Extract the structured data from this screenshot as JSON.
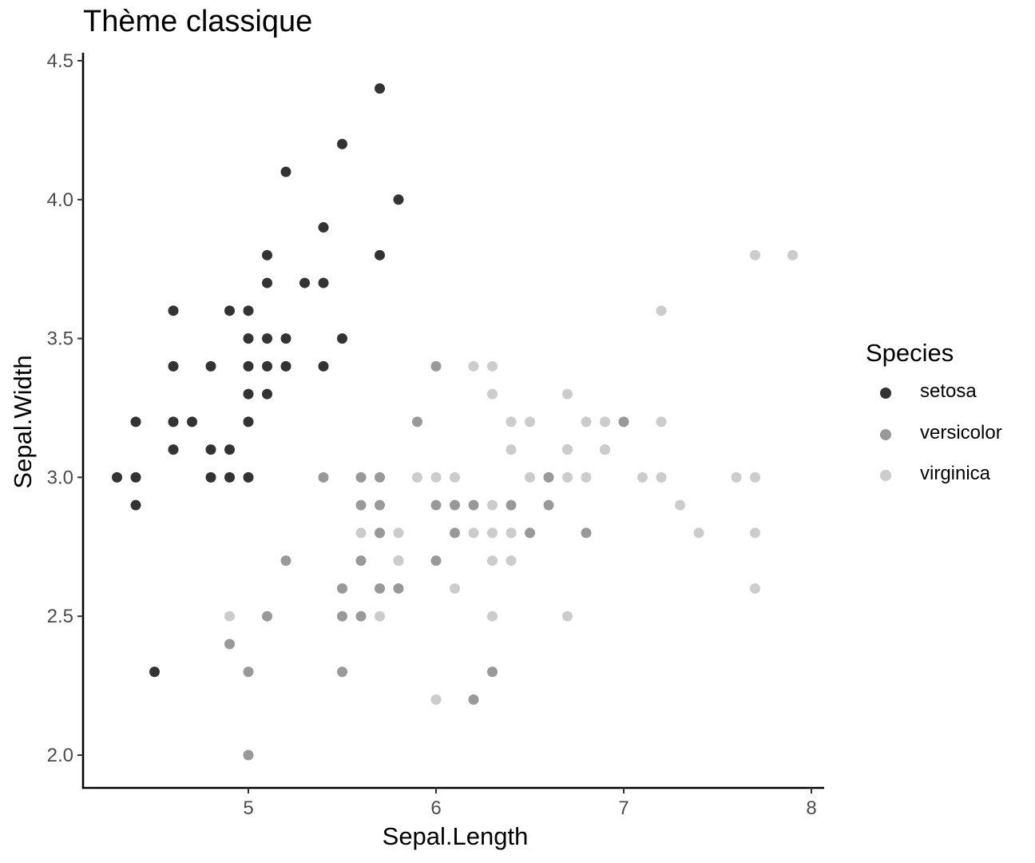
{
  "chart_data": {
    "type": "scatter",
    "title": "Thème classique",
    "xlabel": "Sepal.Length",
    "ylabel": "Sepal.Width",
    "xlim": [
      4.2,
      8.1
    ],
    "ylim": [
      1.88,
      4.52
    ],
    "xticks": [
      5,
      6,
      7,
      8
    ],
    "yticks": [
      2.0,
      2.5,
      3.0,
      3.5,
      4.0,
      4.5
    ],
    "ytick_labels": [
      "2.0",
      "2.5",
      "3.0",
      "3.5",
      "4.0",
      "4.5"
    ],
    "xtick_labels": [
      "5",
      "6",
      "7",
      "8"
    ],
    "grid": false,
    "legend": {
      "title": "Species",
      "placement": "right"
    },
    "series": [
      {
        "name": "setosa",
        "color": "#333333",
        "x": [
          5.7,
          5.5,
          5.2,
          5.8,
          5.4,
          5.7,
          5.1,
          5.1,
          5.3,
          5.4,
          4.6,
          4.9,
          5.0,
          5.0,
          5.1,
          5.2,
          5.5,
          4.6,
          4.8,
          5.0,
          5.1,
          5.2,
          5.4,
          5.0,
          5.1,
          4.4,
          4.6,
          4.7,
          5.0,
          4.6,
          4.8,
          4.9,
          4.3,
          4.4,
          4.8,
          4.9,
          5.0,
          4.4,
          4.5
        ],
        "y": [
          4.4,
          4.2,
          4.1,
          4.0,
          3.9,
          3.8,
          3.8,
          3.7,
          3.7,
          3.7,
          3.6,
          3.6,
          3.6,
          3.5,
          3.5,
          3.5,
          3.5,
          3.4,
          3.4,
          3.4,
          3.4,
          3.4,
          3.4,
          3.3,
          3.3,
          3.2,
          3.2,
          3.2,
          3.2,
          3.1,
          3.1,
          3.1,
          3.0,
          3.0,
          3.0,
          3.0,
          3.0,
          2.9,
          2.3
        ]
      },
      {
        "name": "versicolor",
        "color": "#999999",
        "x": [
          6.0,
          5.9,
          7.0,
          6.7,
          6.9,
          5.4,
          5.6,
          5.7,
          6.6,
          5.6,
          5.7,
          6.0,
          6.1,
          6.2,
          6.4,
          6.6,
          5.7,
          6.1,
          6.5,
          6.8,
          5.2,
          5.6,
          5.8,
          6.0,
          5.5,
          5.7,
          5.8,
          5.1,
          5.5,
          5.6,
          4.9,
          5.0,
          5.5,
          6.3,
          6.2,
          5.0
        ],
        "y": [
          3.4,
          3.2,
          3.2,
          3.1,
          3.1,
          3.0,
          3.0,
          3.0,
          3.0,
          2.9,
          2.9,
          2.9,
          2.9,
          2.9,
          2.9,
          2.9,
          2.8,
          2.8,
          2.8,
          2.8,
          2.7,
          2.7,
          2.7,
          2.7,
          2.6,
          2.6,
          2.6,
          2.5,
          2.5,
          2.5,
          2.4,
          2.3,
          2.3,
          2.3,
          2.2,
          2.0
        ]
      },
      {
        "name": "virginica",
        "color": "#cccccc",
        "x": [
          7.7,
          7.9,
          7.2,
          6.2,
          6.3,
          6.3,
          6.7,
          6.4,
          6.5,
          6.8,
          6.9,
          7.2,
          6.4,
          6.7,
          6.9,
          5.9,
          6.0,
          6.1,
          6.5,
          6.7,
          6.8,
          7.1,
          7.2,
          7.6,
          7.7,
          6.3,
          6.4,
          7.3,
          5.6,
          5.8,
          6.2,
          6.3,
          6.4,
          7.4,
          7.7,
          5.8,
          6.3,
          6.4,
          6.1,
          7.7,
          4.9,
          5.7,
          6.3,
          6.7,
          6.0
        ],
        "y": [
          3.8,
          3.8,
          3.6,
          3.4,
          3.4,
          3.3,
          3.3,
          3.2,
          3.2,
          3.2,
          3.2,
          3.2,
          3.1,
          3.1,
          3.1,
          3.0,
          3.0,
          3.0,
          3.0,
          3.0,
          3.0,
          3.0,
          3.0,
          3.0,
          3.0,
          2.9,
          2.8,
          2.9,
          2.8,
          2.8,
          2.8,
          2.8,
          2.8,
          2.8,
          2.8,
          2.7,
          2.7,
          2.7,
          2.6,
          2.6,
          2.5,
          2.5,
          2.5,
          2.5,
          2.2
        ]
      }
    ]
  }
}
